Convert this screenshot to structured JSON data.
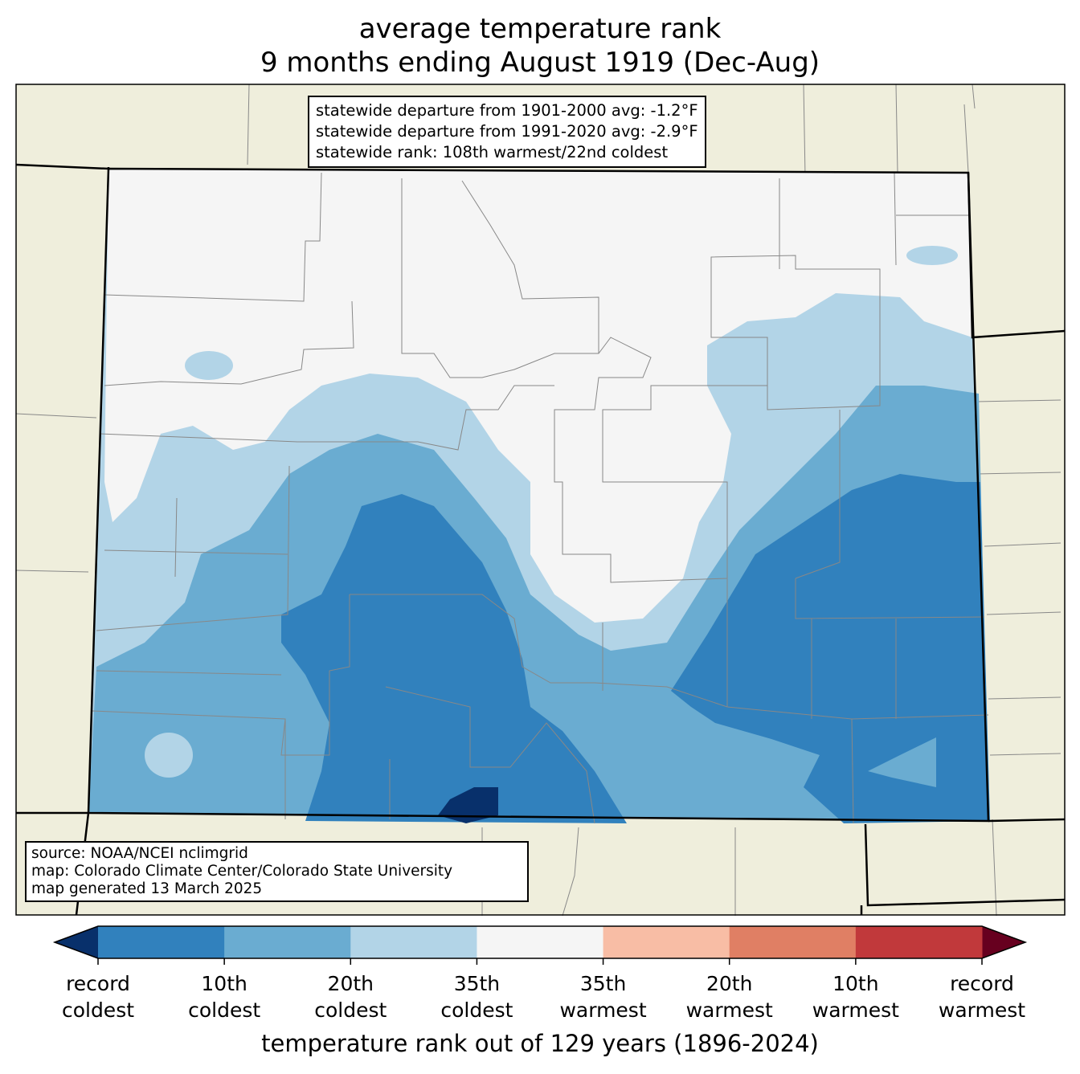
{
  "title": {
    "line1": "average temperature rank",
    "line2": "9 months ending August 1919 (Dec-Aug)"
  },
  "stats_box": {
    "line1": "statewide departure from 1901-2000 avg: -1.2°F",
    "line2": "statewide departure from 1991-2020 avg: -2.9°F",
    "line3": "statewide rank: 108th warmest/22nd coldest"
  },
  "source_box": {
    "line1": "source: NOAA/NCEI nclimgrid",
    "line2": "map: Colorado Climate Center/Colorado State University",
    "line3": "map generated 13 March 2025"
  },
  "legend": {
    "title": "temperature rank out of 129 years (1896-2024)",
    "ticks": [
      {
        "l1": "record",
        "l2": "coldest"
      },
      {
        "l1": "10th",
        "l2": "coldest"
      },
      {
        "l1": "20th",
        "l2": "coldest"
      },
      {
        "l1": "35th",
        "l2": "coldest"
      },
      {
        "l1": "35th",
        "l2": "warmest"
      },
      {
        "l1": "20th",
        "l2": "warmest"
      },
      {
        "l1": "10th",
        "l2": "warmest"
      },
      {
        "l1": "record",
        "l2": "warmest"
      }
    ],
    "colors": [
      "#3181bd",
      "#6aacd1",
      "#b2d4e7",
      "#f5f5f5",
      "#f8bda5",
      "#e07f64",
      "#c1393b"
    ],
    "low_extend_color": "#08306b",
    "high_extend_color": "#67001f"
  }
}
